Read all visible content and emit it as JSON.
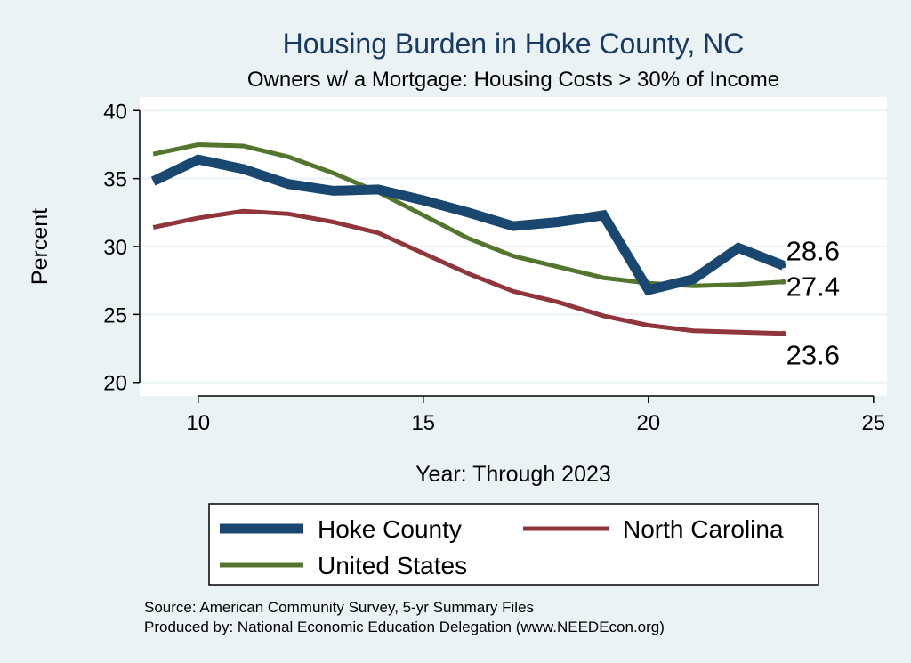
{
  "chart_data": {
    "type": "line",
    "title": "Housing Burden in Hoke County, NC",
    "subtitle": "Owners w/ a Mortgage: Housing Costs > 30% of Income",
    "xlabel": "Year: Through 2023",
    "ylabel": "Percent",
    "xlim": [
      8.7,
      25.3
    ],
    "ylim": [
      19,
      41
    ],
    "x_ticks": [
      10,
      15,
      20,
      25
    ],
    "y_ticks": [
      20,
      25,
      30,
      35,
      40
    ],
    "x": [
      9,
      10,
      11,
      12,
      13,
      14,
      15,
      16,
      17,
      18,
      19,
      20,
      21,
      22,
      23
    ],
    "series": [
      {
        "name": "Hoke County",
        "color": "#1a476f",
        "values": [
          34.8,
          36.4,
          35.7,
          34.6,
          34.1,
          34.2,
          33.4,
          32.5,
          31.5,
          31.8,
          32.3,
          26.8,
          27.6,
          29.9,
          28.6
        ],
        "end_label": "28.6"
      },
      {
        "name": "North Carolina",
        "color": "#90353b",
        "values": [
          31.4,
          32.1,
          32.6,
          32.4,
          31.8,
          31.0,
          29.5,
          28.0,
          26.7,
          25.9,
          24.9,
          24.2,
          23.8,
          23.7,
          23.6
        ],
        "end_label": "23.6"
      },
      {
        "name": "United States",
        "color": "#55752f",
        "values": [
          36.8,
          37.5,
          37.4,
          36.6,
          35.4,
          34.0,
          32.3,
          30.6,
          29.3,
          28.5,
          27.7,
          27.3,
          27.1,
          27.2,
          27.4
        ],
        "end_label": "27.4"
      }
    ],
    "legend": {
      "position": "bottom",
      "entries": [
        "Hoke County",
        "North Carolina",
        "United States"
      ]
    },
    "source_lines": [
      "Source: American Community Survey, 5-yr Summary Files",
      "Produced by: National Economic Education Delegation (www.NEEDEcon.org)"
    ],
    "colors": {
      "background": "#eaf2f3",
      "plot_background": "#ffffff",
      "grid": "#eaf2f3",
      "title": "#1a3a64"
    }
  }
}
